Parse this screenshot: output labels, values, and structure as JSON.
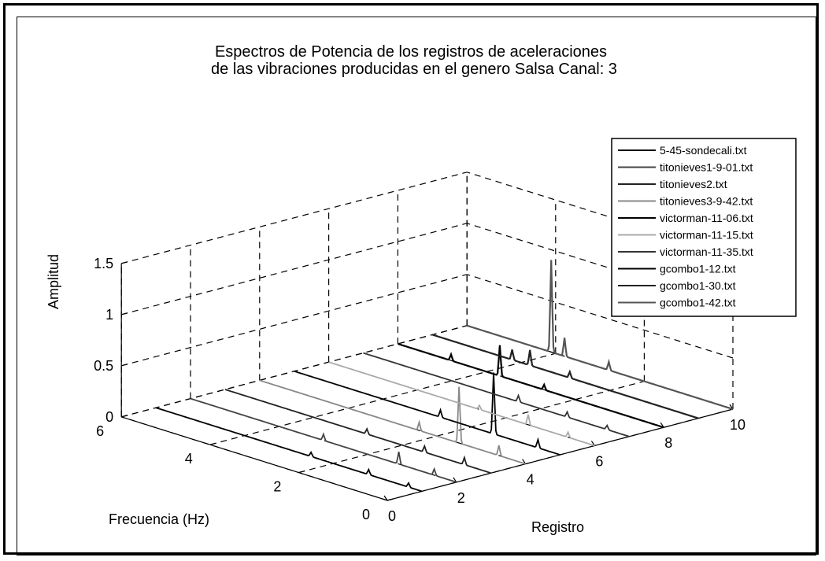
{
  "chart_data": {
    "type": "line",
    "subtype": "3d-waterfall",
    "title": [
      "Espectros de Potencia de los registros de aceleraciones",
      "de las vibraciones producidas en el genero Salsa Canal: 3"
    ],
    "xlabel": "Frecuencia (Hz)",
    "ylabel": "Registro",
    "zlabel": "Amplitud",
    "xlim": [
      0,
      6
    ],
    "ylim": [
      0,
      10
    ],
    "zlim": [
      0,
      1.5
    ],
    "xticks": [
      "0",
      "2",
      "4",
      "6"
    ],
    "yticks": [
      "0",
      "2",
      "4",
      "6",
      "8",
      "10"
    ],
    "zticks": [
      "0",
      "0.5",
      "1",
      "1.5"
    ],
    "grid": true,
    "legend_position": "top-right",
    "series": [
      {
        "name": "5-45-sondecali.txt",
        "registro": 1,
        "color": "#000000",
        "peaks": [
          [
            0.3,
            0.04
          ],
          [
            1.2,
            0.05
          ],
          [
            2.5,
            0.04
          ]
        ]
      },
      {
        "name": "titonieves1-9-01.txt",
        "registro": 2,
        "color": "#444444",
        "peaks": [
          [
            0.5,
            0.06
          ],
          [
            1.3,
            0.12
          ],
          [
            3.0,
            0.06
          ]
        ]
      },
      {
        "name": "titonieves2.txt",
        "registro": 3,
        "color": "#222222",
        "peaks": [
          [
            0.6,
            0.07
          ],
          [
            1.5,
            0.06
          ],
          [
            2.8,
            0.05
          ]
        ]
      },
      {
        "name": "titonieves3-9-42.txt",
        "registro": 4,
        "color": "#888888",
        "peaks": [
          [
            0.6,
            0.1
          ],
          [
            1.5,
            0.55
          ],
          [
            2.4,
            0.08
          ]
        ]
      },
      {
        "name": "victorman-11-06.txt",
        "registro": 5,
        "color": "#000000",
        "peaks": [
          [
            0.5,
            0.08
          ],
          [
            1.5,
            0.6
          ],
          [
            2.7,
            0.07
          ]
        ]
      },
      {
        "name": "victorman-11-15.txt",
        "registro": 6,
        "color": "#aaaaaa",
        "peaks": [
          [
            0.6,
            0.05
          ],
          [
            1.5,
            0.1
          ],
          [
            2.6,
            0.04
          ]
        ]
      },
      {
        "name": "victorman-11-35.txt",
        "registro": 7,
        "color": "#333333",
        "peaks": [
          [
            0.5,
            0.04
          ],
          [
            1.4,
            0.05
          ],
          [
            2.5,
            0.06
          ]
        ]
      },
      {
        "name": "gcombo1-12.txt",
        "registro": 8,
        "color": "#000000",
        "peaks": [
          [
            2.7,
            0.05
          ],
          [
            3.7,
            0.3
          ],
          [
            4.8,
            0.06
          ]
        ]
      },
      {
        "name": "gcombo1-30.txt",
        "registro": 9,
        "color": "#222222",
        "peaks": [
          [
            2.9,
            0.06
          ],
          [
            3.8,
            0.15
          ],
          [
            4.2,
            0.1
          ]
        ]
      },
      {
        "name": "gcombo1-42.txt",
        "registro": 10,
        "color": "#555555",
        "peaks": [
          [
            2.8,
            0.08
          ],
          [
            3.8,
            0.18
          ],
          [
            4.1,
            0.9
          ]
        ]
      }
    ]
  }
}
